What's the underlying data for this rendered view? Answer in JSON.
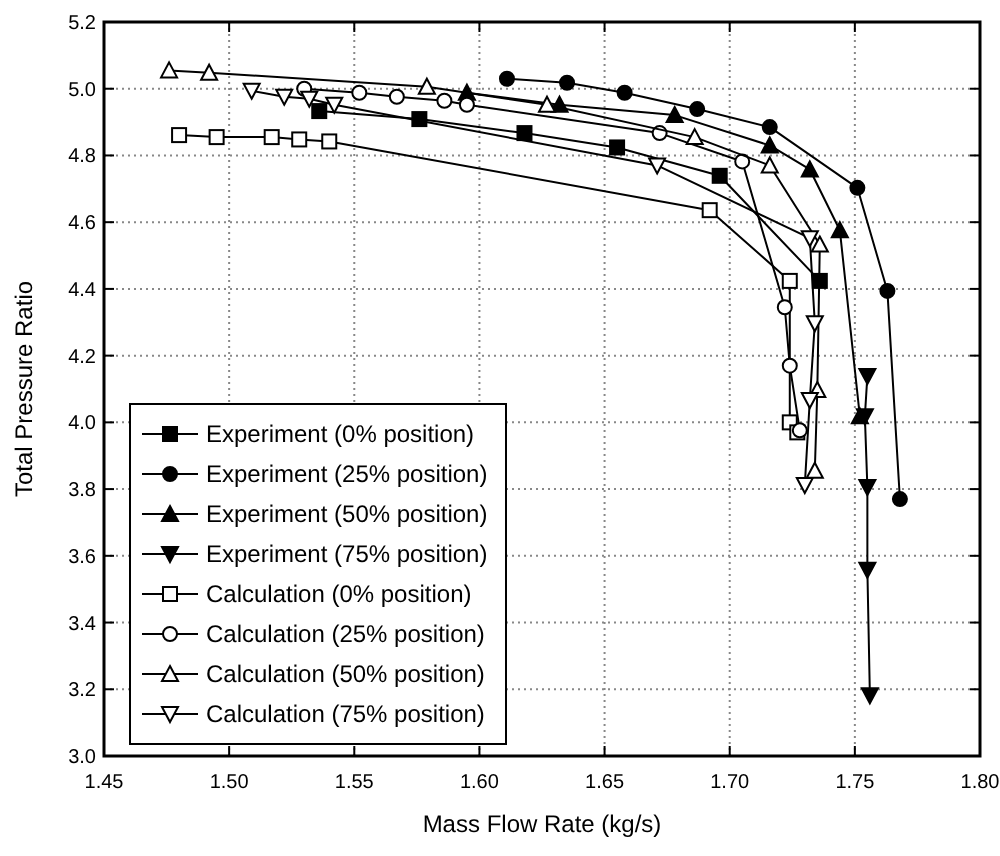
{
  "chart_data": {
    "type": "line",
    "xlabel": "Mass Flow Rate (kg/s)",
    "ylabel": "Total Pressure Ratio",
    "xlim": [
      1.45,
      1.8
    ],
    "ylim": [
      3.0,
      5.2
    ],
    "xticks": [
      {
        "value": 1.45,
        "label": "1.45"
      },
      {
        "value": 1.5,
        "label": "1.50"
      },
      {
        "value": 1.55,
        "label": "1.55"
      },
      {
        "value": 1.6,
        "label": "1.60"
      },
      {
        "value": 1.65,
        "label": "1.65"
      },
      {
        "value": 1.7,
        "label": "1.70"
      },
      {
        "value": 1.75,
        "label": "1.75"
      },
      {
        "value": 1.8,
        "label": "1.80"
      }
    ],
    "yticks": [
      {
        "value": 3.0,
        "label": "3.0"
      },
      3.2,
      3.4,
      3.6,
      3.8,
      {
        "value": 4.0,
        "label": "4.0"
      },
      4.2,
      4.4,
      4.6,
      4.8,
      {
        "value": 5.0,
        "label": "5.0"
      },
      5.2
    ],
    "grid": true,
    "legend": "bottom left",
    "line_style": "solid",
    "series": [
      {
        "name": "Experiment (0% position)",
        "color": "#000000",
        "marker": "square",
        "x": [
          1.536,
          1.576,
          1.618,
          1.655,
          1.696,
          1.736
        ],
        "values": [
          4.933,
          4.909,
          4.867,
          4.824,
          4.739,
          4.424
        ]
      },
      {
        "name": "Experiment (25% position)",
        "color": "#000000",
        "marker": "circle",
        "x": [
          1.611,
          1.635,
          1.658,
          1.687,
          1.716,
          1.751,
          1.763,
          1.768
        ],
        "values": [
          5.03,
          5.018,
          4.988,
          4.939,
          4.885,
          4.703,
          4.394,
          3.77
        ]
      },
      {
        "name": "Experiment (50% position)",
        "color": "#000000",
        "marker": "triangle",
        "x": [
          1.595,
          1.632,
          1.678,
          1.716,
          1.732,
          1.744,
          1.752
        ],
        "values": [
          4.988,
          4.952,
          4.921,
          4.83,
          4.758,
          4.576,
          4.018
        ]
      },
      {
        "name": "Experiment (75% position)",
        "color": "#000000",
        "marker": "triangle-down",
        "x": [
          1.755,
          1.754,
          1.755,
          1.755,
          1.756
        ],
        "values": [
          4.139,
          4.018,
          3.806,
          3.558,
          3.182
        ]
      },
      {
        "name": "Calculation (0% position)",
        "color": "#000000",
        "marker": "square-open",
        "x": [
          1.48,
          1.495,
          1.517,
          1.528,
          1.54,
          1.692,
          1.724,
          1.724,
          1.727
        ],
        "values": [
          4.861,
          4.855,
          4.855,
          4.848,
          4.842,
          4.636,
          4.424,
          4.0,
          3.97
        ]
      },
      {
        "name": "Calculation (25% position)",
        "color": "#000000",
        "marker": "circle-open",
        "x": [
          1.53,
          1.552,
          1.567,
          1.586,
          1.595,
          1.672,
          1.705,
          1.722,
          1.724,
          1.728
        ],
        "values": [
          5.0,
          4.988,
          4.976,
          4.964,
          4.952,
          4.867,
          4.782,
          4.345,
          4.17,
          3.976
        ]
      },
      {
        "name": "Calculation (50% position)",
        "color": "#000000",
        "marker": "triangle-open",
        "x": [
          1.476,
          1.492,
          1.579,
          1.627,
          1.686,
          1.716,
          1.736,
          1.735,
          1.734
        ],
        "values": [
          5.055,
          5.048,
          5.006,
          4.952,
          4.855,
          4.77,
          4.533,
          4.097,
          3.855
        ]
      },
      {
        "name": "Calculation (75% position)",
        "color": "#000000",
        "marker": "triangle-down-open",
        "x": [
          1.509,
          1.522,
          1.532,
          1.542,
          1.671,
          1.732,
          1.734,
          1.732,
          1.73
        ],
        "values": [
          4.994,
          4.976,
          4.97,
          4.952,
          4.77,
          4.552,
          4.297,
          4.067,
          3.812
        ]
      }
    ]
  }
}
